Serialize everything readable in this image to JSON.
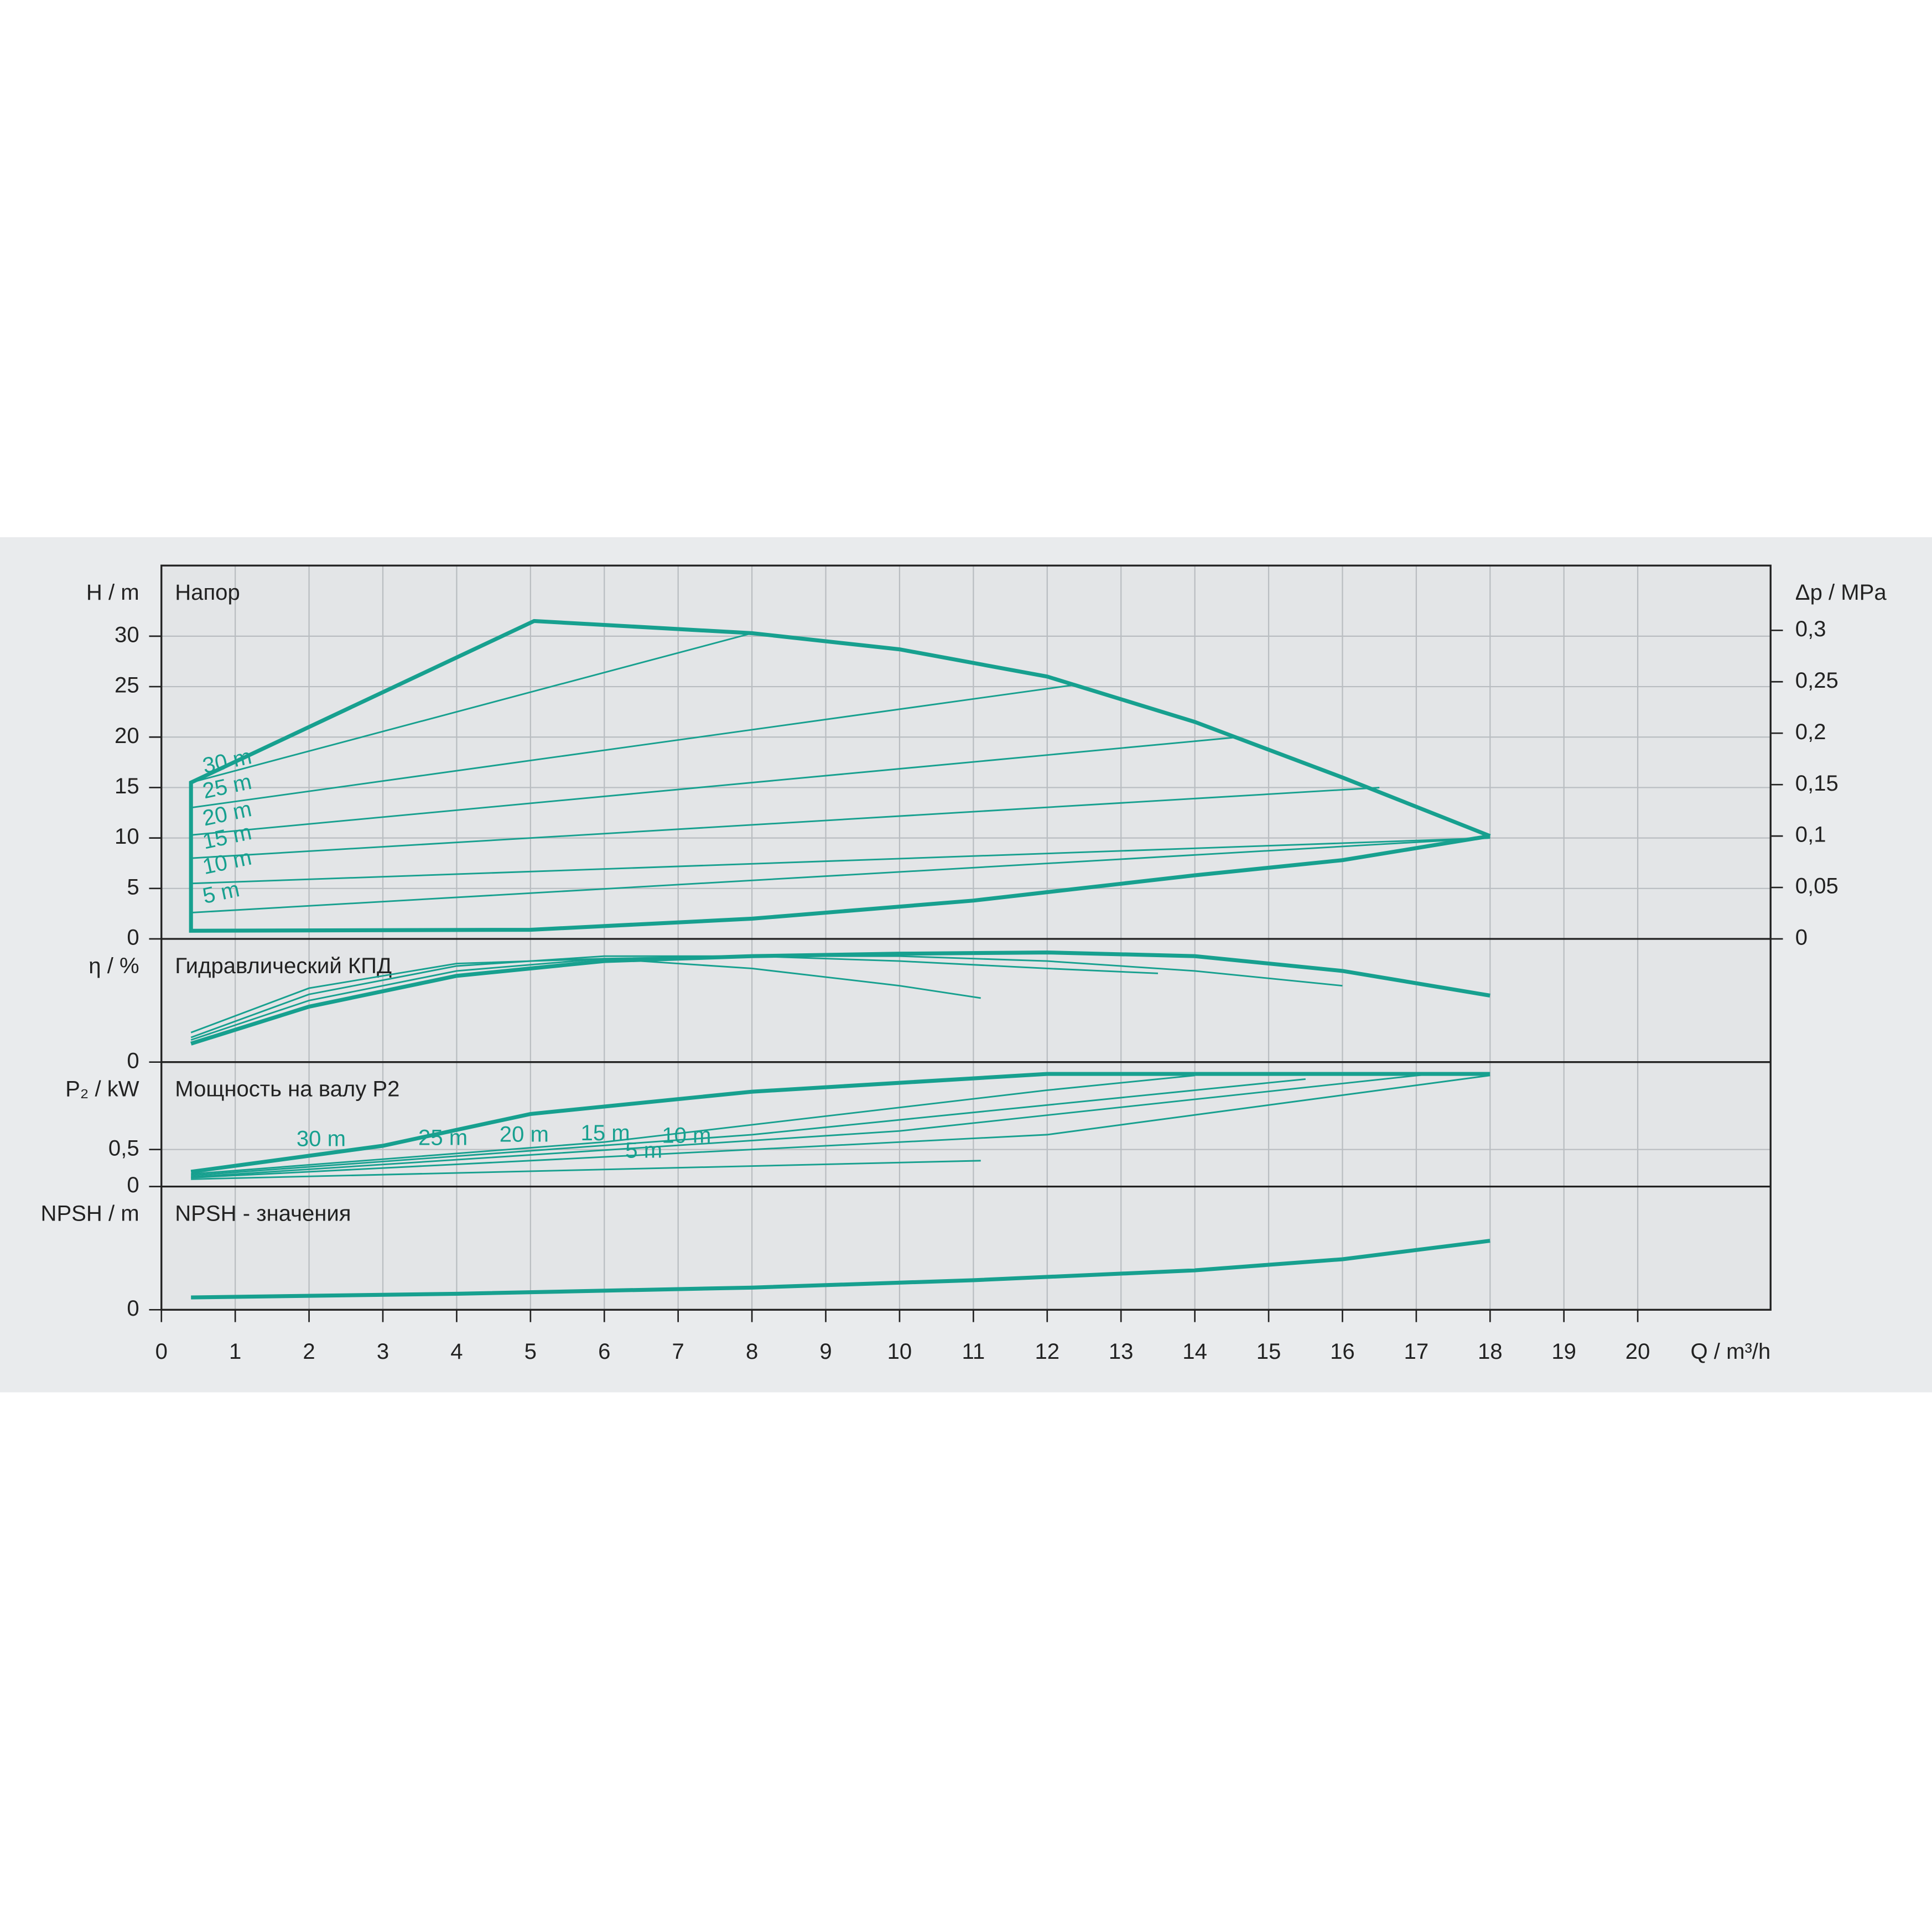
{
  "chart_data": [
    {
      "type": "line",
      "title": "Напор",
      "ylabel": "H / m",
      "y2label": "Δp / MPa",
      "xlim": [
        0,
        21.8
      ],
      "ylim": [
        0,
        37
      ],
      "yticks": [
        0,
        5,
        10,
        15,
        20,
        25,
        30
      ],
      "y2lim": [
        0,
        0.363
      ],
      "y2ticks": [
        0,
        {
          "value": 0.05,
          "label": "0,05"
        },
        {
          "value": 0.1,
          "label": "0,1"
        },
        {
          "value": 0.15,
          "label": "0,15"
        },
        {
          "value": 0.2,
          "label": "0,2"
        },
        {
          "value": 0.25,
          "label": "0,25"
        },
        {
          "value": 0.3,
          "label": "0,3"
        }
      ],
      "grid": true,
      "series": [
        {
          "color": "#17a08f",
          "x": [
            18,
            16,
            14,
            11,
            8,
            5,
            0.4,
            0.4,
            5.05,
            8,
            10,
            12,
            14,
            16,
            18
          ],
          "values": [
            10.2,
            7.8,
            6.3,
            3.8,
            2,
            0.9,
            0.8,
            15.5,
            31.5,
            30.3,
            28.7,
            26,
            21.5,
            16,
            10.2
          ]
        },
        {
          "name": "30 m",
          "color": "#17a08f",
          "x": [
            0.4,
            8
          ],
          "values": [
            15.5,
            30.3
          ]
        },
        {
          "name": "25 m",
          "color": "#17a08f",
          "x": [
            0.4,
            12.4
          ],
          "values": [
            13,
            25.2
          ]
        },
        {
          "name": "20 m",
          "color": "#17a08f",
          "x": [
            0.4,
            14.6
          ],
          "values": [
            10.3,
            20
          ]
        },
        {
          "name": "15 m",
          "color": "#17a08f",
          "x": [
            0.4,
            16.5
          ],
          "values": [
            8,
            15
          ]
        },
        {
          "name": "10 m",
          "color": "#17a08f",
          "x": [
            0.4,
            18
          ],
          "values": [
            5.5,
            10
          ]
        },
        {
          "name": "5 m",
          "color": "#17a08f",
          "x": [
            0.4,
            18
          ],
          "values": [
            2.6,
            10
          ]
        }
      ]
    },
    {
      "type": "line",
      "title": "Гидравлический КПД",
      "ylabel": "η / %",
      "xlim": [
        0,
        21.8
      ],
      "ylim": [
        0,
        100
      ],
      "yticks": [
        0
      ],
      "series": [
        {
          "color": "#17a08f",
          "x": [
            0.4,
            2,
            4,
            6,
            8,
            10,
            12,
            14,
            16,
            18
          ],
          "values": [
            15,
            45,
            70,
            82,
            86,
            88,
            89,
            86,
            74,
            54
          ]
        },
        {
          "color": "#17a08f",
          "x": [
            0.4,
            2,
            4,
            6,
            8,
            10,
            12,
            14,
            16
          ],
          "values": [
            18,
            50,
            74,
            84,
            86,
            86,
            82,
            74,
            62
          ]
        },
        {
          "color": "#17a08f",
          "x": [
            0.4,
            2,
            4,
            6,
            8,
            10,
            12,
            13.5
          ],
          "values": [
            20,
            55,
            78,
            86,
            86,
            82,
            76,
            72
          ]
        },
        {
          "color": "#17a08f",
          "x": [
            0.4,
            2,
            4,
            6,
            8,
            10,
            11.1
          ],
          "values": [
            24,
            60,
            80,
            84,
            76,
            62,
            52
          ]
        }
      ]
    },
    {
      "type": "line",
      "title": "Мощность на валу P2",
      "ylabel": "P₂ / kW",
      "xlim": [
        0,
        21.8
      ],
      "ylim": [
        0,
        1.68
      ],
      "yticks": [
        0,
        {
          "value": 0.5,
          "label": "0,5"
        }
      ],
      "grid": true,
      "series": [
        {
          "name": "30 m",
          "color": "#17a08f",
          "x": [
            0.4,
            3,
            5,
            8,
            12,
            18
          ],
          "values": [
            0.2,
            0.55,
            0.98,
            1.28,
            1.52,
            1.52
          ]
        },
        {
          "name": "25 m",
          "color": "#17a08f",
          "x": [
            0.4,
            6,
            12,
            14
          ],
          "values": [
            0.17,
            0.6,
            1.3,
            1.5
          ]
        },
        {
          "name": "20 m",
          "color": "#17a08f",
          "x": [
            0.4,
            8,
            15.5
          ],
          "values": [
            0.15,
            0.7,
            1.45
          ]
        },
        {
          "name": "15 m",
          "color": "#17a08f",
          "x": [
            0.4,
            10,
            17.3
          ],
          "values": [
            0.13,
            0.75,
            1.53
          ]
        },
        {
          "name": "10 m",
          "color": "#17a08f",
          "x": [
            0.4,
            12,
            18
          ],
          "values": [
            0.12,
            0.7,
            1.5
          ]
        },
        {
          "name": "5 m",
          "color": "#17a08f",
          "x": [
            0.4,
            11.1
          ],
          "values": [
            0.1,
            0.35
          ]
        }
      ]
    },
    {
      "type": "line",
      "title": "NPSH - значения",
      "ylabel": "NPSH / m",
      "xlabel": "Q / m³/h",
      "xlim": [
        0,
        21.8
      ],
      "ylim": [
        0,
        10
      ],
      "yticks": [
        0
      ],
      "xticks": [
        0,
        1,
        2,
        3,
        4,
        5,
        6,
        7,
        8,
        9,
        10,
        11,
        12,
        13,
        14,
        15,
        16,
        17,
        18,
        19,
        20
      ],
      "series": [
        {
          "color": "#17a08f",
          "x": [
            0.4,
            4,
            8,
            11,
            14,
            16,
            18
          ],
          "values": [
            1,
            1.3,
            1.8,
            2.4,
            3.2,
            4.1,
            5.6
          ]
        }
      ]
    }
  ]
}
